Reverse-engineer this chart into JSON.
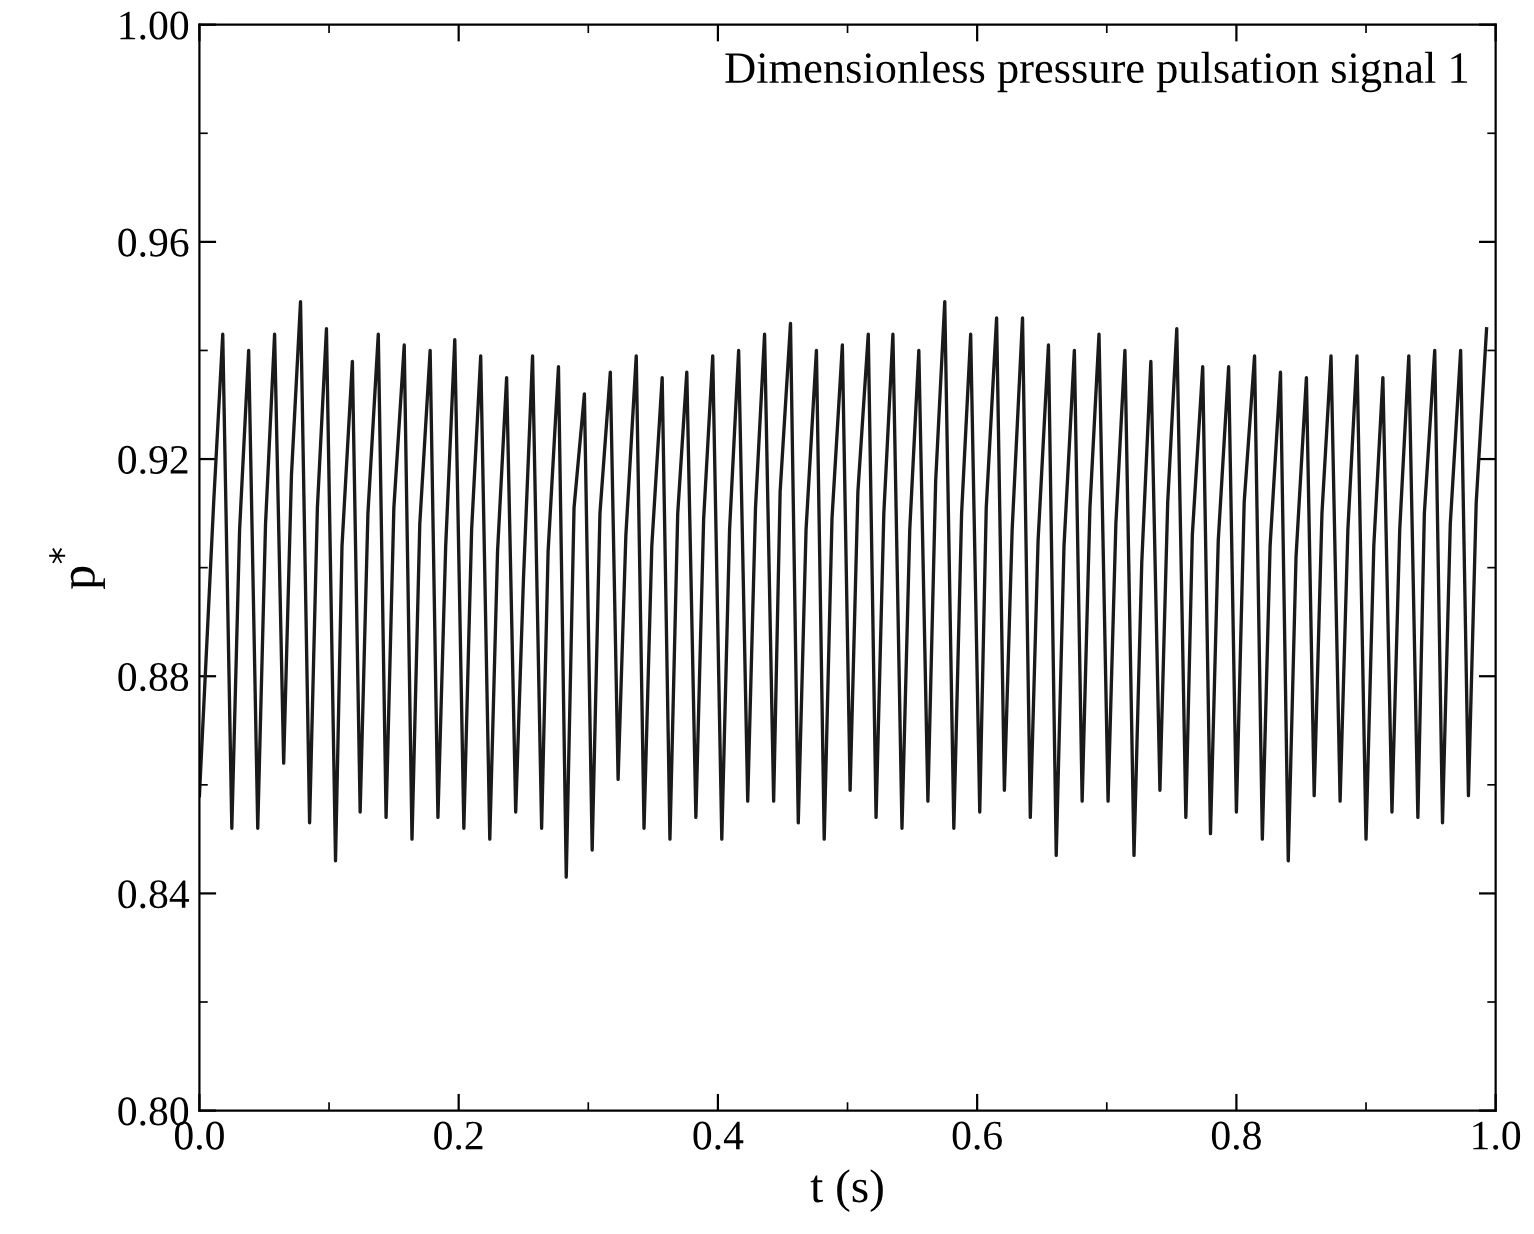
{
  "chart_data": {
    "type": "line",
    "xlabel": "t (s)",
    "ylabel": "p$^{*}$",
    "annotations": [
      "Dimensionless pressure pulsation signal 1"
    ],
    "xlim": [
      0,
      1.0
    ],
    "ylim": [
      0.8,
      1.0
    ],
    "xticks": [
      {
        "value": 0,
        "label": "0.0"
      },
      0.2,
      0.4,
      0.6,
      0.8,
      {
        "value": 1.0,
        "label": "1.0"
      }
    ],
    "yticks": [
      {
        "value": 0.8,
        "label": "0.80"
      },
      {
        "value": 0.84,
        "label": "0.84"
      },
      {
        "value": 0.88,
        "label": "0.88"
      },
      {
        "value": 0.92,
        "label": "0.92"
      },
      {
        "value": 0.96,
        "label": "0.96"
      },
      {
        "value": 1.0,
        "label": "1.00"
      }
    ],
    "grid": false,
    "marker": "none",
    "line_style": "solid",
    "series": [
      {
        "color": "#1a1a1a",
        "x": [
          0,
          0.011,
          0.018,
          0.025,
          0.031,
          0.038,
          0.045,
          0.051,
          0.058,
          0.065,
          0.071,
          0.078,
          0.085,
          0.091,
          0.098,
          0.105,
          0.11,
          0.118,
          0.124,
          0.13,
          0.138,
          0.144,
          0.15,
          0.158,
          0.164,
          0.17,
          0.178,
          0.184,
          0.19,
          0.197,
          0.204,
          0.21,
          0.217,
          0.224,
          0.23,
          0.237,
          0.244,
          0.25,
          0.257,
          0.264,
          0.269,
          0.277,
          0.283,
          0.289,
          0.297,
          0.303,
          0.309,
          0.317,
          0.323,
          0.329,
          0.337,
          0.343,
          0.349,
          0.357,
          0.363,
          0.369,
          0.376,
          0.383,
          0.389,
          0.396,
          0.403,
          0.409,
          0.416,
          0.423,
          0.429,
          0.436,
          0.443,
          0.448,
          0.456,
          0.462,
          0.468,
          0.476,
          0.482,
          0.488,
          0.496,
          0.502,
          0.508,
          0.516,
          0.522,
          0.528,
          0.535,
          0.542,
          0.548,
          0.555,
          0.562,
          0.568,
          0.575,
          0.582,
          0.588,
          0.595,
          0.602,
          0.607,
          0.615,
          0.621,
          0.627,
          0.635,
          0.641,
          0.647,
          0.655,
          0.661,
          0.667,
          0.675,
          0.681,
          0.687,
          0.694,
          0.701,
          0.707,
          0.714,
          0.721,
          0.727,
          0.734,
          0.741,
          0.747,
          0.754,
          0.761,
          0.766,
          0.774,
          0.78,
          0.786,
          0.794,
          0.8,
          0.806,
          0.814,
          0.82,
          0.826,
          0.834,
          0.84,
          0.846,
          0.854,
          0.86,
          0.866,
          0.873,
          0.88,
          0.886,
          0.893,
          0.9,
          0.906,
          0.913,
          0.92,
          0.926,
          0.933,
          0.94,
          0.945,
          0.953,
          0.959,
          0.965,
          0.973,
          0.979,
          0.985,
          0.993
        ],
        "values": [
          0.858,
          0.912,
          0.943,
          0.852,
          0.907,
          0.94,
          0.852,
          0.908,
          0.943,
          0.864,
          0.917,
          0.949,
          0.853,
          0.911,
          0.944,
          0.846,
          0.904,
          0.938,
          0.855,
          0.91,
          0.943,
          0.854,
          0.911,
          0.941,
          0.85,
          0.908,
          0.94,
          0.854,
          0.904,
          0.942,
          0.852,
          0.907,
          0.939,
          0.85,
          0.903,
          0.935,
          0.855,
          0.898,
          0.939,
          0.852,
          0.903,
          0.937,
          0.843,
          0.911,
          0.932,
          0.848,
          0.91,
          0.936,
          0.861,
          0.906,
          0.939,
          0.852,
          0.904,
          0.935,
          0.85,
          0.91,
          0.936,
          0.854,
          0.909,
          0.939,
          0.85,
          0.907,
          0.94,
          0.857,
          0.911,
          0.943,
          0.857,
          0.914,
          0.945,
          0.853,
          0.907,
          0.94,
          0.85,
          0.909,
          0.941,
          0.859,
          0.914,
          0.943,
          0.854,
          0.91,
          0.943,
          0.852,
          0.907,
          0.94,
          0.857,
          0.916,
          0.949,
          0.852,
          0.91,
          0.943,
          0.855,
          0.911,
          0.946,
          0.859,
          0.907,
          0.946,
          0.854,
          0.905,
          0.941,
          0.847,
          0.904,
          0.94,
          0.857,
          0.911,
          0.943,
          0.857,
          0.908,
          0.94,
          0.847,
          0.901,
          0.938,
          0.859,
          0.912,
          0.944,
          0.854,
          0.906,
          0.937,
          0.851,
          0.905,
          0.937,
          0.855,
          0.912,
          0.939,
          0.85,
          0.904,
          0.936,
          0.846,
          0.902,
          0.935,
          0.858,
          0.91,
          0.939,
          0.857,
          0.907,
          0.939,
          0.85,
          0.904,
          0.935,
          0.855,
          0.907,
          0.939,
          0.854,
          0.91,
          0.94,
          0.853,
          0.908,
          0.94,
          0.858,
          0.912,
          0.944
        ]
      }
    ]
  }
}
